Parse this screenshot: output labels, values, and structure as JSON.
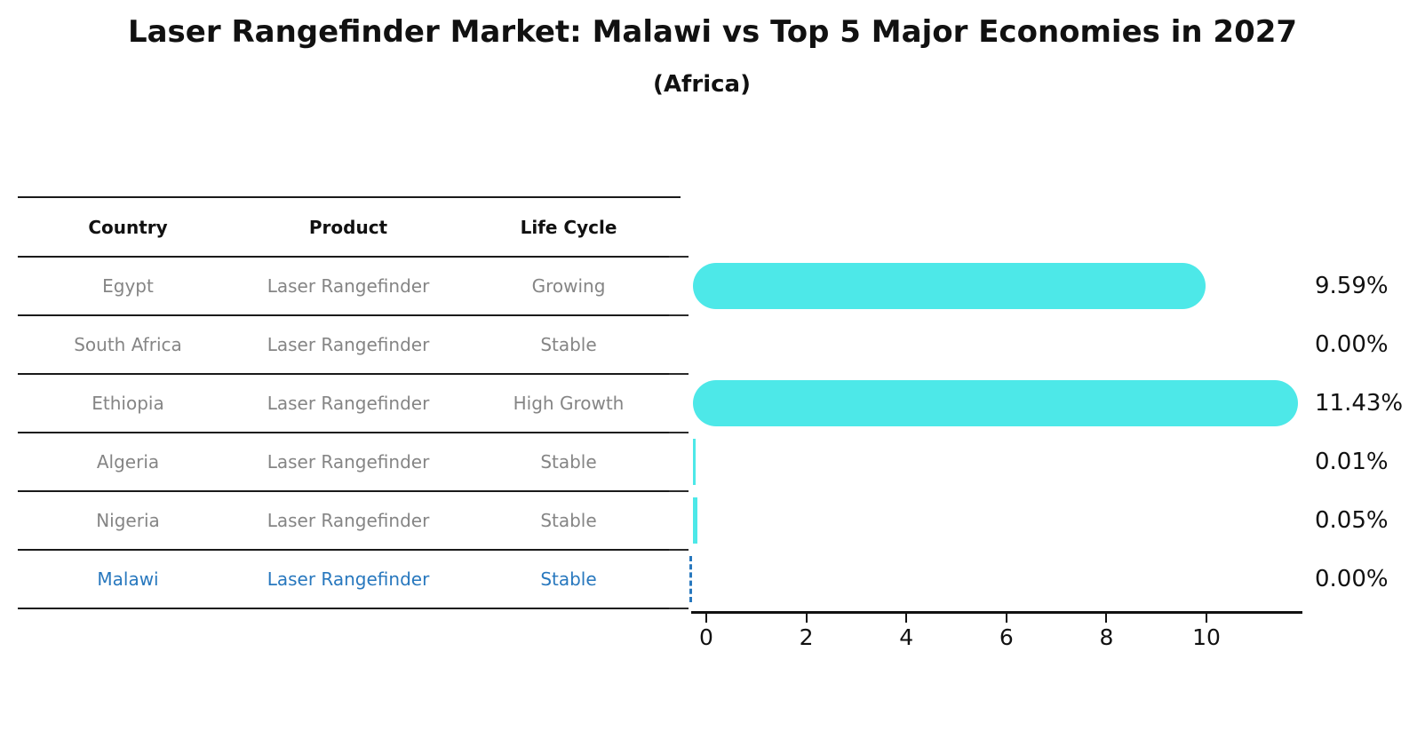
{
  "header": {
    "title": "Laser Rangefinder Market: Malawi vs Top 5 Major Economies in 2027",
    "subtitle": "(Africa)"
  },
  "table": {
    "columns": [
      "Country",
      "Product",
      "Life Cycle"
    ],
    "rows": [
      {
        "country": "Egypt",
        "product": "Laser Rangefinder",
        "life_cycle": "Growing",
        "share": "9.59%",
        "highlight": false
      },
      {
        "country": "South Africa",
        "product": "Laser Rangefinder",
        "life_cycle": "Stable",
        "share": "0.00%",
        "highlight": false
      },
      {
        "country": "Ethiopia",
        "product": "Laser Rangefinder",
        "life_cycle": "High Growth",
        "share": "11.43%",
        "highlight": false
      },
      {
        "country": "Algeria",
        "product": "Laser Rangefinder",
        "life_cycle": "Stable",
        "share": "0.01%",
        "highlight": false
      },
      {
        "country": "Nigeria",
        "product": "Laser Rangefinder",
        "life_cycle": "Stable",
        "share": "0.05%",
        "highlight": false
      },
      {
        "country": "Malawi",
        "product": "Laser Rangefinder",
        "life_cycle": "Stable",
        "share": "0.00%",
        "highlight": true
      }
    ]
  },
  "chart_data": {
    "type": "bar",
    "orientation": "horizontal",
    "title": "Laser Rangefinder Market: Malawi vs Top 5 Major Economies in 2027 (Africa)",
    "categories": [
      "Egypt",
      "South Africa",
      "Ethiopia",
      "Algeria",
      "Nigeria",
      "Malawi"
    ],
    "values": [
      9.59,
      0.0,
      11.43,
      0.01,
      0.05,
      0.0
    ],
    "value_labels": [
      "9.59%",
      "0.00%",
      "11.43%",
      "0.01%",
      "0.05%",
      "0.00%"
    ],
    "xticks": [
      0,
      2,
      4,
      6,
      8,
      10
    ],
    "xlim": [
      0,
      12
    ],
    "xlabel": "",
    "ylabel": "",
    "grid": false,
    "legend": false,
    "bar_color": "#4de8e8",
    "highlight_color": "#2878be",
    "highlight_category": "Malawi",
    "highlight_style": "dashed-outline"
  }
}
